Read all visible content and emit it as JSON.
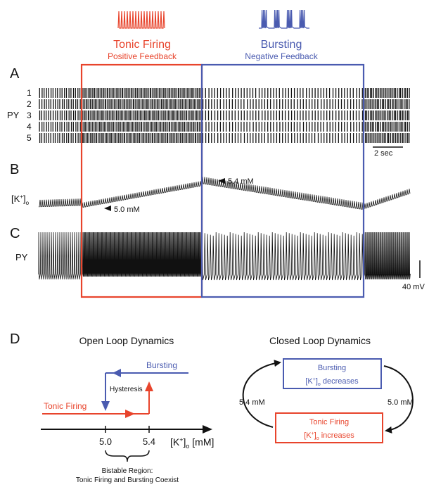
{
  "top": {
    "tonic_title": "Tonic Firing",
    "tonic_sub": "Positive Feedback",
    "burst_title": "Bursting",
    "burst_sub": "Negative Feedback"
  },
  "panel_a": {
    "letter": "A",
    "ylabel": "PY",
    "rows": [
      "1",
      "2",
      "3",
      "4",
      "5"
    ],
    "scalebar": "2 sec"
  },
  "panel_b": {
    "letter": "B",
    "ylabel_main": "[K",
    "ylabel_sup": "+",
    "ylabel_end": "]",
    "ylabel_sub": "o",
    "low_label": "5.0 mM",
    "high_label": "5.4 mM"
  },
  "panel_c": {
    "letter": "C",
    "ylabel": "PY",
    "scalebar": "40 mV"
  },
  "panel_d": {
    "letter": "D",
    "open_title": "Open Loop Dynamics",
    "closed_title": "Closed Loop Dynamics",
    "bursting_label": "Bursting",
    "hysteresis_label": "Hysteresis",
    "tonic_label": "Tonic Firing",
    "tick_low": "5.0",
    "tick_high": "5.4",
    "axis_label_a": "[K",
    "axis_label_sup": "+",
    "axis_label_b": "]",
    "axis_label_sub": "o",
    "axis_label_unit": " [mM]",
    "bistable_1": "Bistable Region:",
    "bistable_2": "Tonic Firing and Bursting Coexist",
    "box_burst_title": "Bursting",
    "box_burst_line_a": "[K",
    "box_burst_line_sup": "+",
    "box_burst_line_b": "]",
    "box_burst_line_sub": "o",
    "box_burst_line_c": " decreases",
    "box_tonic_title": "Tonic Firing",
    "box_tonic_line_a": "[K",
    "box_tonic_line_sup": "+",
    "box_tonic_line_b": "]",
    "box_tonic_line_sub": "o",
    "box_tonic_line_c": " increases",
    "left_arc_label": "5.4 mM",
    "right_arc_label": "5.0 mM"
  },
  "colors": {
    "red": "#e8442c",
    "blue": "#4a5bb0"
  }
}
